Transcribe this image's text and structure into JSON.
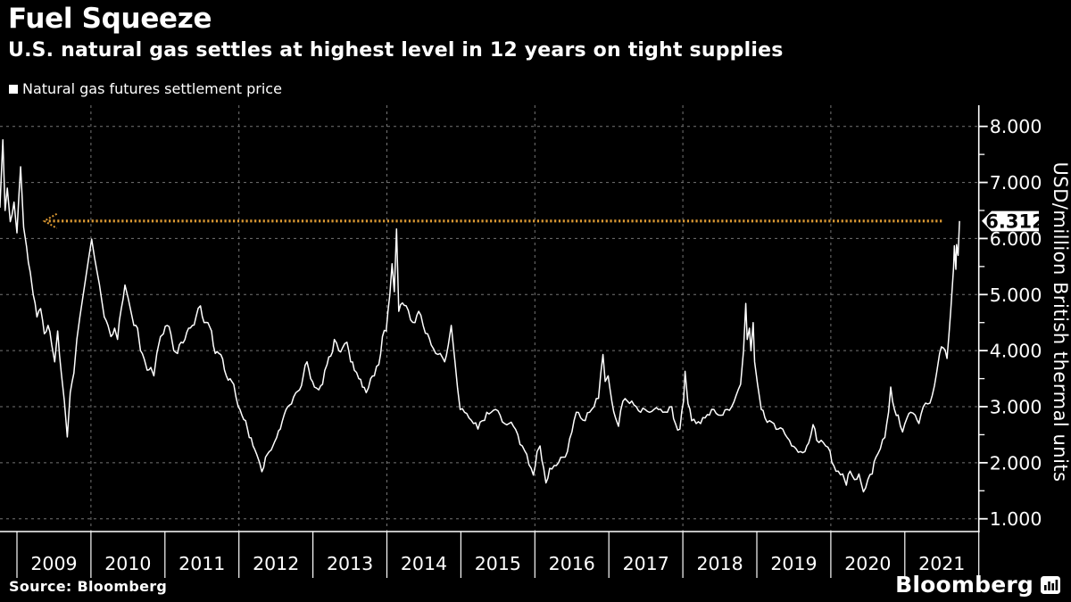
{
  "chart_data": {
    "type": "line",
    "title": "Fuel Squeeze",
    "subtitle": "U.S. natural gas settles at highest level in 12 years on tight supplies",
    "ylabel": "USD/million British thermal units",
    "xlabel": "",
    "grid": true,
    "legend_position": "top-left",
    "x_ticks": [
      "2009",
      "2010",
      "2011",
      "2012",
      "2013",
      "2014",
      "2015",
      "2016",
      "2017",
      "2018",
      "2019",
      "2020",
      "2021"
    ],
    "x_domain_years": [
      2008.77,
      2022.0
    ],
    "x_gridline_years": [
      2010,
      2012,
      2014,
      2016,
      2018,
      2020
    ],
    "y_ticks": [
      {
        "value": 8,
        "label": "8.000"
      },
      {
        "value": 7,
        "label": "7.000"
      },
      {
        "value": 6,
        "label": "6.000"
      },
      {
        "value": 5,
        "label": "5.000"
      },
      {
        "value": 4,
        "label": "4.000"
      },
      {
        "value": 3,
        "label": "3.000"
      },
      {
        "value": 2,
        "label": "2.000"
      },
      {
        "value": 1,
        "label": "1.000"
      }
    ],
    "y_minor_tick_step": 0.5,
    "ylim": [
      0.8,
      8.4
    ],
    "annotation": {
      "value": 6.312,
      "label": "6.312",
      "style": "dotted",
      "color": "#DC9933",
      "start_year": 2009.43,
      "end_year": 2021.52,
      "arrow": "left"
    },
    "series": [
      {
        "name": "Natural gas futures settlement price",
        "color": "#ffffff",
        "points": [
          [
            2008.77,
            6.55
          ],
          [
            2008.81,
            7.76
          ],
          [
            2008.84,
            6.5
          ],
          [
            2008.87,
            6.9
          ],
          [
            2008.91,
            6.3
          ],
          [
            2008.96,
            6.65
          ],
          [
            2009.0,
            6.1
          ],
          [
            2009.05,
            7.28
          ],
          [
            2009.09,
            6.2
          ],
          [
            2009.13,
            5.85
          ],
          [
            2009.18,
            5.4
          ],
          [
            2009.22,
            5.0
          ],
          [
            2009.27,
            4.6
          ],
          [
            2009.32,
            4.75
          ],
          [
            2009.37,
            4.3
          ],
          [
            2009.42,
            4.45
          ],
          [
            2009.47,
            4.1
          ],
          [
            2009.51,
            3.8
          ],
          [
            2009.55,
            4.35
          ],
          [
            2009.6,
            3.6
          ],
          [
            2009.64,
            3.1
          ],
          [
            2009.68,
            2.46
          ],
          [
            2009.72,
            3.25
          ],
          [
            2009.77,
            3.6
          ],
          [
            2009.81,
            4.2
          ],
          [
            2009.85,
            4.6
          ],
          [
            2009.89,
            4.95
          ],
          [
            2009.93,
            5.3
          ],
          [
            2009.97,
            5.65
          ],
          [
            2010.01,
            5.99
          ],
          [
            2010.05,
            5.65
          ],
          [
            2010.09,
            5.35
          ],
          [
            2010.14,
            4.95
          ],
          [
            2010.18,
            4.6
          ],
          [
            2010.23,
            4.45
          ],
          [
            2010.27,
            4.25
          ],
          [
            2010.32,
            4.4
          ],
          [
            2010.36,
            4.2
          ],
          [
            2010.41,
            4.75
          ],
          [
            2010.46,
            5.17
          ],
          [
            2010.5,
            4.95
          ],
          [
            2010.54,
            4.7
          ],
          [
            2010.58,
            4.45
          ],
          [
            2010.63,
            4.4
          ],
          [
            2010.67,
            4.0
          ],
          [
            2010.72,
            3.85
          ],
          [
            2010.76,
            3.65
          ],
          [
            2010.81,
            3.7
          ],
          [
            2010.85,
            3.55
          ],
          [
            2010.89,
            3.95
          ],
          [
            2010.94,
            4.25
          ],
          [
            2010.98,
            4.3
          ],
          [
            2011.03,
            4.45
          ],
          [
            2011.08,
            4.3
          ],
          [
            2011.12,
            4.0
          ],
          [
            2011.17,
            3.95
          ],
          [
            2011.22,
            4.15
          ],
          [
            2011.27,
            4.2
          ],
          [
            2011.32,
            4.4
          ],
          [
            2011.37,
            4.45
          ],
          [
            2011.42,
            4.6
          ],
          [
            2011.48,
            4.8
          ],
          [
            2011.53,
            4.5
          ],
          [
            2011.58,
            4.5
          ],
          [
            2011.63,
            4.35
          ],
          [
            2011.68,
            3.95
          ],
          [
            2011.73,
            3.95
          ],
          [
            2011.78,
            3.85
          ],
          [
            2011.83,
            3.55
          ],
          [
            2011.88,
            3.5
          ],
          [
            2011.93,
            3.4
          ],
          [
            2011.99,
            3.0
          ],
          [
            2012.04,
            2.85
          ],
          [
            2012.09,
            2.75
          ],
          [
            2012.14,
            2.45
          ],
          [
            2012.19,
            2.3
          ],
          [
            2012.24,
            2.15
          ],
          [
            2012.28,
            2.0
          ],
          [
            2012.31,
            1.84
          ],
          [
            2012.36,
            2.1
          ],
          [
            2012.41,
            2.2
          ],
          [
            2012.46,
            2.3
          ],
          [
            2012.51,
            2.45
          ],
          [
            2012.56,
            2.6
          ],
          [
            2012.61,
            2.85
          ],
          [
            2012.66,
            3.0
          ],
          [
            2012.71,
            3.05
          ],
          [
            2012.77,
            3.25
          ],
          [
            2012.82,
            3.3
          ],
          [
            2012.87,
            3.55
          ],
          [
            2012.92,
            3.8
          ],
          [
            2012.97,
            3.5
          ],
          [
            2013.02,
            3.35
          ],
          [
            2013.08,
            3.3
          ],
          [
            2013.13,
            3.4
          ],
          [
            2013.19,
            3.75
          ],
          [
            2013.24,
            3.9
          ],
          [
            2013.29,
            4.2
          ],
          [
            2013.35,
            4.0
          ],
          [
            2013.4,
            4.05
          ],
          [
            2013.46,
            4.15
          ],
          [
            2013.51,
            3.8
          ],
          [
            2013.56,
            3.65
          ],
          [
            2013.62,
            3.5
          ],
          [
            2013.67,
            3.35
          ],
          [
            2013.72,
            3.25
          ],
          [
            2013.78,
            3.5
          ],
          [
            2013.83,
            3.55
          ],
          [
            2013.89,
            3.75
          ],
          [
            2013.94,
            4.25
          ],
          [
            2013.99,
            4.35
          ],
          [
            2014.04,
            5.0
          ],
          [
            2014.07,
            5.55
          ],
          [
            2014.1,
            5.05
          ],
          [
            2014.13,
            6.17
          ],
          [
            2014.16,
            4.7
          ],
          [
            2014.21,
            4.85
          ],
          [
            2014.26,
            4.8
          ],
          [
            2014.32,
            4.55
          ],
          [
            2014.38,
            4.5
          ],
          [
            2014.43,
            4.7
          ],
          [
            2014.49,
            4.45
          ],
          [
            2014.55,
            4.3
          ],
          [
            2014.6,
            4.1
          ],
          [
            2014.66,
            3.95
          ],
          [
            2014.72,
            3.95
          ],
          [
            2014.78,
            3.8
          ],
          [
            2014.83,
            4.1
          ],
          [
            2014.87,
            4.45
          ],
          [
            2014.92,
            3.8
          ],
          [
            2014.99,
            2.95
          ],
          [
            2015.05,
            2.9
          ],
          [
            2015.11,
            2.8
          ],
          [
            2015.17,
            2.7
          ],
          [
            2015.23,
            2.6
          ],
          [
            2015.29,
            2.75
          ],
          [
            2015.35,
            2.9
          ],
          [
            2015.41,
            2.9
          ],
          [
            2015.47,
            2.95
          ],
          [
            2015.53,
            2.85
          ],
          [
            2015.59,
            2.7
          ],
          [
            2015.65,
            2.7
          ],
          [
            2015.71,
            2.65
          ],
          [
            2015.77,
            2.5
          ],
          [
            2015.83,
            2.3
          ],
          [
            2015.89,
            2.15
          ],
          [
            2015.95,
            1.9
          ],
          [
            2015.98,
            1.78
          ],
          [
            2016.03,
            2.2
          ],
          [
            2016.07,
            2.3
          ],
          [
            2016.12,
            1.9
          ],
          [
            2016.15,
            1.64
          ],
          [
            2016.2,
            1.9
          ],
          [
            2016.26,
            1.95
          ],
          [
            2016.32,
            2.0
          ],
          [
            2016.38,
            2.1
          ],
          [
            2016.44,
            2.2
          ],
          [
            2016.5,
            2.55
          ],
          [
            2016.56,
            2.9
          ],
          [
            2016.62,
            2.8
          ],
          [
            2016.68,
            2.75
          ],
          [
            2016.74,
            2.9
          ],
          [
            2016.8,
            3.0
          ],
          [
            2016.86,
            3.15
          ],
          [
            2016.92,
            3.93
          ],
          [
            2016.95,
            3.45
          ],
          [
            2016.99,
            3.55
          ],
          [
            2017.04,
            3.1
          ],
          [
            2017.09,
            2.8
          ],
          [
            2017.13,
            2.65
          ],
          [
            2017.19,
            3.1
          ],
          [
            2017.25,
            3.1
          ],
          [
            2017.31,
            3.1
          ],
          [
            2017.37,
            3.0
          ],
          [
            2017.43,
            2.9
          ],
          [
            2017.49,
            2.95
          ],
          [
            2017.55,
            2.9
          ],
          [
            2017.61,
            2.95
          ],
          [
            2017.67,
            2.95
          ],
          [
            2017.73,
            2.9
          ],
          [
            2017.79,
            2.9
          ],
          [
            2017.85,
            3.0
          ],
          [
            2017.9,
            2.7
          ],
          [
            2017.96,
            2.6
          ],
          [
            2018.01,
            3.1
          ],
          [
            2018.03,
            3.63
          ],
          [
            2018.07,
            3.05
          ],
          [
            2018.12,
            2.75
          ],
          [
            2018.18,
            2.7
          ],
          [
            2018.24,
            2.7
          ],
          [
            2018.3,
            2.8
          ],
          [
            2018.36,
            2.85
          ],
          [
            2018.42,
            2.95
          ],
          [
            2018.48,
            2.85
          ],
          [
            2018.54,
            2.85
          ],
          [
            2018.6,
            2.95
          ],
          [
            2018.66,
            3.0
          ],
          [
            2018.72,
            3.2
          ],
          [
            2018.78,
            3.4
          ],
          [
            2018.82,
            4.0
          ],
          [
            2018.85,
            4.84
          ],
          [
            2018.87,
            4.2
          ],
          [
            2018.9,
            4.4
          ],
          [
            2018.92,
            4.0
          ],
          [
            2018.95,
            4.5
          ],
          [
            2018.97,
            3.8
          ],
          [
            2019.01,
            3.4
          ],
          [
            2019.06,
            2.95
          ],
          [
            2019.11,
            2.8
          ],
          [
            2019.17,
            2.75
          ],
          [
            2019.23,
            2.7
          ],
          [
            2019.29,
            2.6
          ],
          [
            2019.35,
            2.6
          ],
          [
            2019.41,
            2.45
          ],
          [
            2019.47,
            2.3
          ],
          [
            2019.53,
            2.25
          ],
          [
            2019.59,
            2.2
          ],
          [
            2019.65,
            2.2
          ],
          [
            2019.7,
            2.35
          ],
          [
            2019.76,
            2.68
          ],
          [
            2019.81,
            2.4
          ],
          [
            2019.87,
            2.4
          ],
          [
            2019.93,
            2.3
          ],
          [
            2019.99,
            2.2
          ],
          [
            2020.04,
            1.95
          ],
          [
            2020.1,
            1.85
          ],
          [
            2020.16,
            1.8
          ],
          [
            2020.21,
            1.6
          ],
          [
            2020.26,
            1.85
          ],
          [
            2020.32,
            1.7
          ],
          [
            2020.38,
            1.8
          ],
          [
            2020.44,
            1.48
          ],
          [
            2020.5,
            1.7
          ],
          [
            2020.56,
            1.8
          ],
          [
            2020.61,
            2.1
          ],
          [
            2020.67,
            2.25
          ],
          [
            2020.73,
            2.45
          ],
          [
            2020.78,
            2.9
          ],
          [
            2020.81,
            3.35
          ],
          [
            2020.86,
            2.95
          ],
          [
            2020.91,
            2.85
          ],
          [
            2020.97,
            2.55
          ],
          [
            2021.03,
            2.8
          ],
          [
            2021.08,
            2.9
          ],
          [
            2021.14,
            2.85
          ],
          [
            2021.19,
            2.7
          ],
          [
            2021.25,
            3.0
          ],
          [
            2021.31,
            3.05
          ],
          [
            2021.37,
            3.2
          ],
          [
            2021.43,
            3.6
          ],
          [
            2021.47,
            3.95
          ],
          [
            2021.52,
            4.05
          ],
          [
            2021.57,
            3.86
          ],
          [
            2021.62,
            4.7
          ],
          [
            2021.66,
            5.5
          ],
          [
            2021.67,
            5.87
          ],
          [
            2021.69,
            5.45
          ],
          [
            2021.7,
            5.89
          ],
          [
            2021.72,
            5.7
          ],
          [
            2021.74,
            6.312
          ]
        ]
      }
    ]
  },
  "colors": {
    "background": "#000000",
    "line": "#ffffff",
    "grid": "#757575",
    "axis": "#ffffff",
    "annotation_orange": "#DC9933",
    "badge_bg": "#ffffff",
    "badge_text": "#000000"
  },
  "footer": {
    "source": "Source: Bloomberg",
    "brand": "Bloomberg"
  }
}
